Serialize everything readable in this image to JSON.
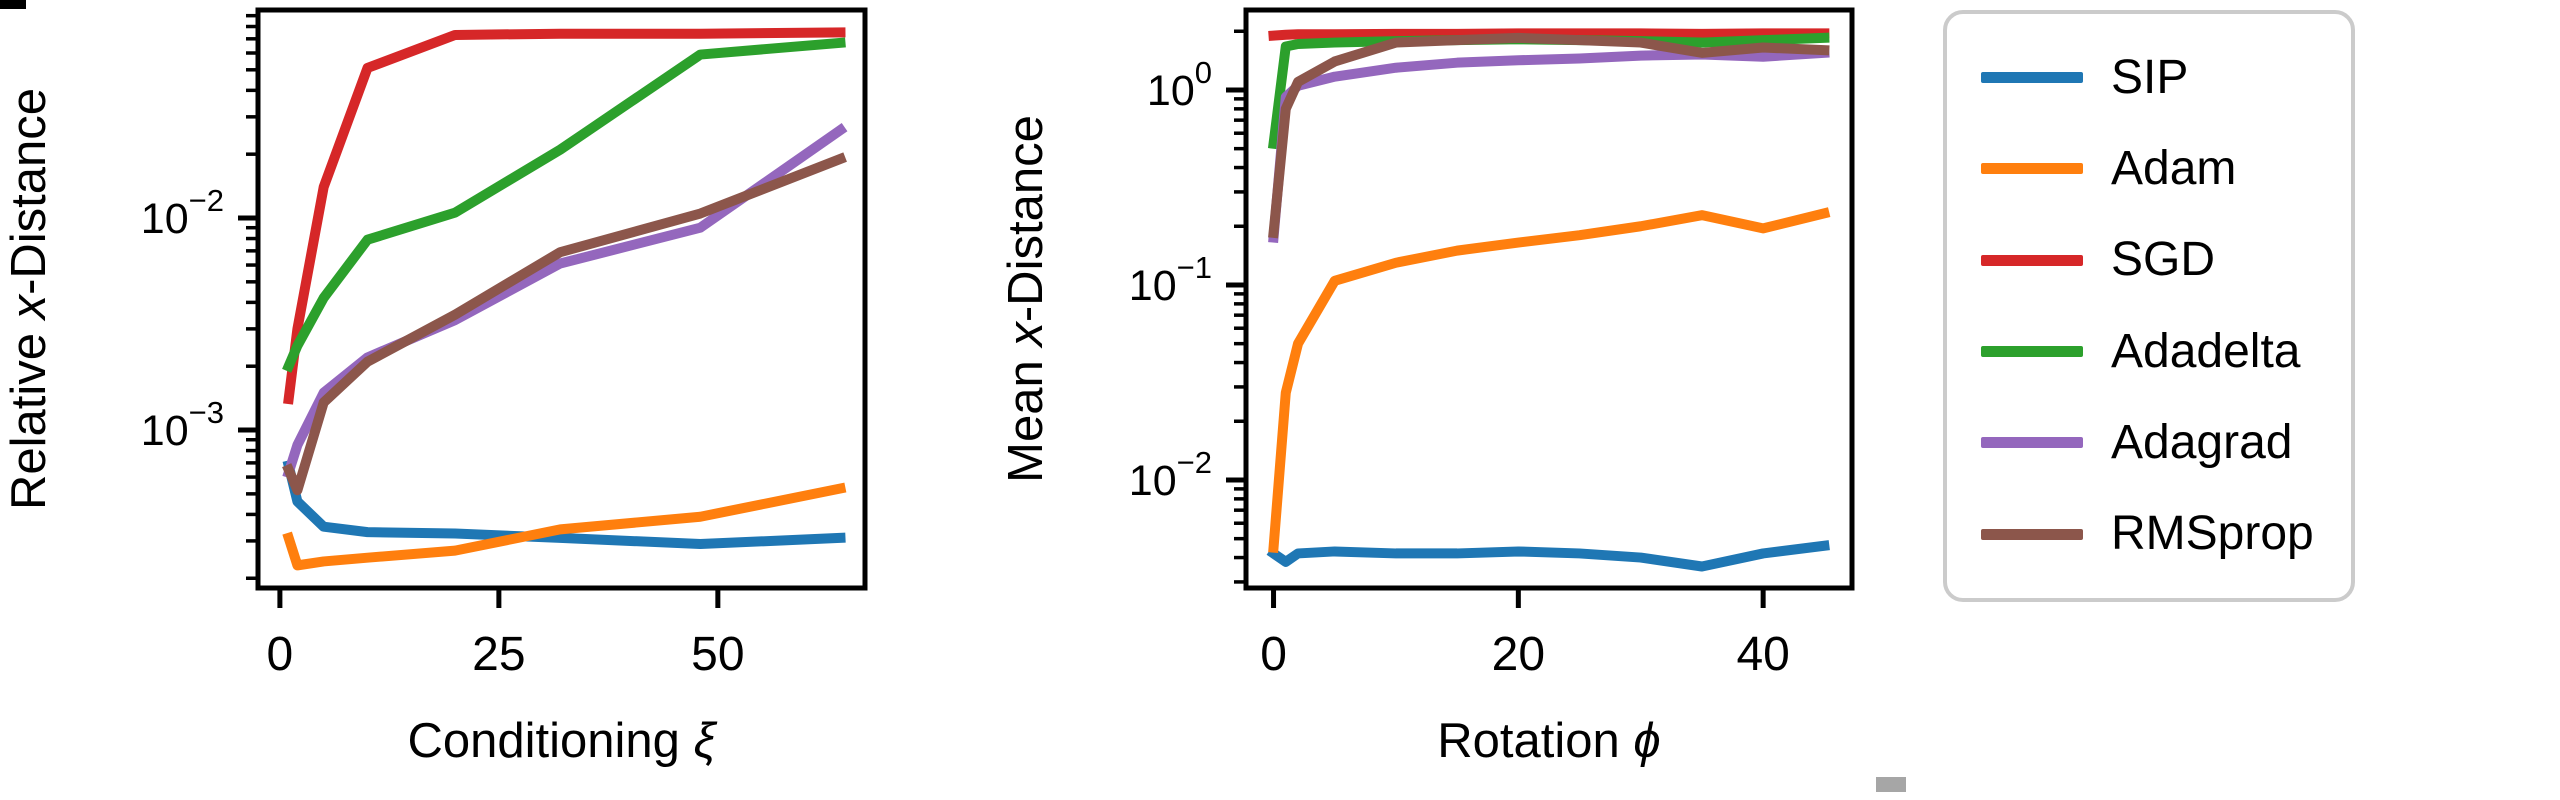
{
  "figure": {
    "background": "#ffffff",
    "text_color": "#000000",
    "spine_color": "#000000"
  },
  "legend": {
    "border_color": "#cbcbcb",
    "entries": [
      "SIP",
      "Adam",
      "SGD",
      "Adadelta",
      "Adagrad",
      "RMSprop"
    ]
  },
  "chart_data": [
    {
      "type": "line",
      "title": "",
      "xlabel_parts": [
        [
          "Conditioning ",
          false
        ],
        [
          "ξ",
          true
        ]
      ],
      "ylabel_parts": [
        [
          "Relative ",
          false
        ],
        [
          "x",
          true
        ],
        [
          "-Distance",
          false
        ]
      ],
      "xscale": "linear",
      "yscale": "log",
      "grid": false,
      "xlim": [
        -2.5,
        66.8
      ],
      "ylim_log": [
        -3.745,
        -1.019
      ],
      "xticks": [
        0,
        25,
        50
      ],
      "ytick_exponents": [
        -3,
        -2
      ],
      "x": [
        1,
        2,
        5,
        10,
        20,
        32,
        48,
        64
      ],
      "series": [
        {
          "name": "SIP",
          "color": "#1f77b4",
          "values": [
            0.00068,
            0.00046,
            0.00035,
            0.00033,
            0.000325,
            0.00031,
            0.00029,
            0.00031
          ]
        },
        {
          "name": "Adam",
          "color": "#ff7f0e",
          "values": [
            0.00031,
            0.00023,
            0.00024,
            0.00025,
            0.00027,
            0.00034,
            0.00039,
            0.00053
          ]
        },
        {
          "name": "SGD",
          "color": "#d62728",
          "values": [
            0.0014,
            0.003,
            0.014,
            0.051,
            0.073,
            0.074,
            0.074,
            0.075
          ]
        },
        {
          "name": "Adadelta",
          "color": "#2ca02c",
          "values": [
            0.002,
            0.0025,
            0.0042,
            0.0079,
            0.0106,
            0.021,
            0.059,
            0.067
          ]
        },
        {
          "name": "Adagrad",
          "color": "#9467bd",
          "values": [
            0.00063,
            0.00085,
            0.0015,
            0.0022,
            0.0033,
            0.0061,
            0.009,
            0.026
          ]
        },
        {
          "name": "RMSprop",
          "color": "#8c564b",
          "values": [
            0.00065,
            0.00052,
            0.00135,
            0.0021,
            0.0035,
            0.0069,
            0.0105,
            0.019
          ]
        }
      ]
    },
    {
      "type": "line",
      "title": "",
      "xlabel_parts": [
        [
          "Rotation ",
          false
        ],
        [
          "ϕ",
          true
        ]
      ],
      "ylabel_parts": [
        [
          "Mean ",
          false
        ],
        [
          "x",
          true
        ],
        [
          "-Distance",
          false
        ]
      ],
      "xscale": "linear",
      "yscale": "log",
      "grid": false,
      "xlim": [
        -2.25,
        47.26
      ],
      "ylim_log": [
        -2.554,
        0.41
      ],
      "xticks": [
        0,
        20,
        40
      ],
      "ytick_exponents": [
        -2,
        -1,
        0
      ],
      "x": [
        0,
        1,
        2,
        5,
        10,
        15,
        20,
        25,
        30,
        35,
        40,
        45
      ],
      "series": [
        {
          "name": "SIP",
          "color": "#1f77b4",
          "values": [
            0.0042,
            0.0038,
            0.0042,
            0.0043,
            0.0042,
            0.0042,
            0.0043,
            0.0042,
            0.004,
            0.0036,
            0.0042,
            0.0046
          ]
        },
        {
          "name": "Adam",
          "color": "#ff7f0e",
          "values": [
            0.0045,
            0.028,
            0.05,
            0.105,
            0.13,
            0.15,
            0.165,
            0.18,
            0.2,
            0.228,
            0.195,
            0.233
          ]
        },
        {
          "name": "SGD",
          "color": "#d62728",
          "values": [
            1.9,
            1.92,
            1.93,
            1.93,
            1.94,
            1.94,
            1.95,
            1.95,
            1.95,
            1.94,
            1.95,
            1.95
          ]
        },
        {
          "name": "Adadelta",
          "color": "#2ca02c",
          "values": [
            0.53,
            1.67,
            1.72,
            1.75,
            1.78,
            1.8,
            1.82,
            1.8,
            1.78,
            1.75,
            1.8,
            1.85
          ]
        },
        {
          "name": "Adagrad",
          "color": "#9467bd",
          "values": [
            0.175,
            0.92,
            1.05,
            1.17,
            1.3,
            1.38,
            1.42,
            1.45,
            1.5,
            1.52,
            1.48,
            1.55
          ]
        },
        {
          "name": "RMSprop",
          "color": "#8c564b",
          "values": [
            0.185,
            0.8,
            1.1,
            1.4,
            1.75,
            1.8,
            1.85,
            1.8,
            1.75,
            1.55,
            1.65,
            1.6
          ]
        }
      ]
    }
  ]
}
